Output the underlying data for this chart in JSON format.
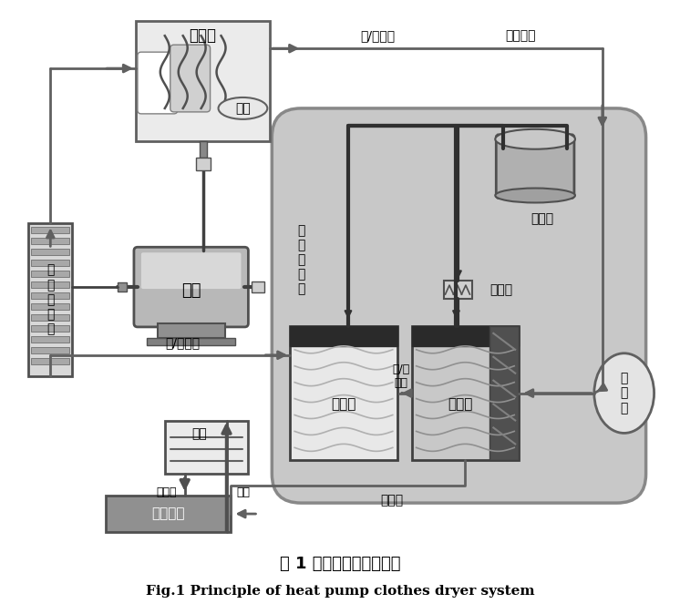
{
  "title_cn": "图 1 热泵干衣机系统原理",
  "title_en": "Fig.1 Principle of heat pump clothes dryer system",
  "bg_color": "#ffffff",
  "labels": {
    "drum": "滚　筒",
    "clothes": "衣物",
    "motor": "电机",
    "fan": "循\n环\n风\n叶\n轮",
    "refrigerant_cycle": "制\n冷\n剂\n循\n环",
    "compressor": "压缩机",
    "capillary": "毛细管",
    "condenser": "冷凝器",
    "evaporator": "蒸发器",
    "dry_cold_air": "干/冷\n空气",
    "filter": "过\n滤\n器",
    "water_box": "水盒",
    "water_tank": "下部水槽",
    "excess_water": "过量水",
    "water_pump": "水泵",
    "wet_cold_air": "湿/冷空气",
    "air_cycle": "空气循环",
    "dry_hot_air": "干/热空气",
    "condensed_water": "冷凝水"
  },
  "colors": {
    "arrow_gray": "#606060",
    "box_dark": "#505050",
    "box_light_gray": "#d0d0d0",
    "box_medium_gray": "#b0b0b0",
    "rounded_bg": "#c8c8c8",
    "drum_bg": "#e8e8e8",
    "motor_bg": "#a0a0a0",
    "fan_bg": "#d0d0d0",
    "compressor_color": "#909090",
    "pipe_color": "#303030",
    "water_box_bg": "#e0e0e0",
    "water_tank_bg": "#909090",
    "condenser_white": "#e8e8e8",
    "evaporator_dark": "#404040"
  }
}
